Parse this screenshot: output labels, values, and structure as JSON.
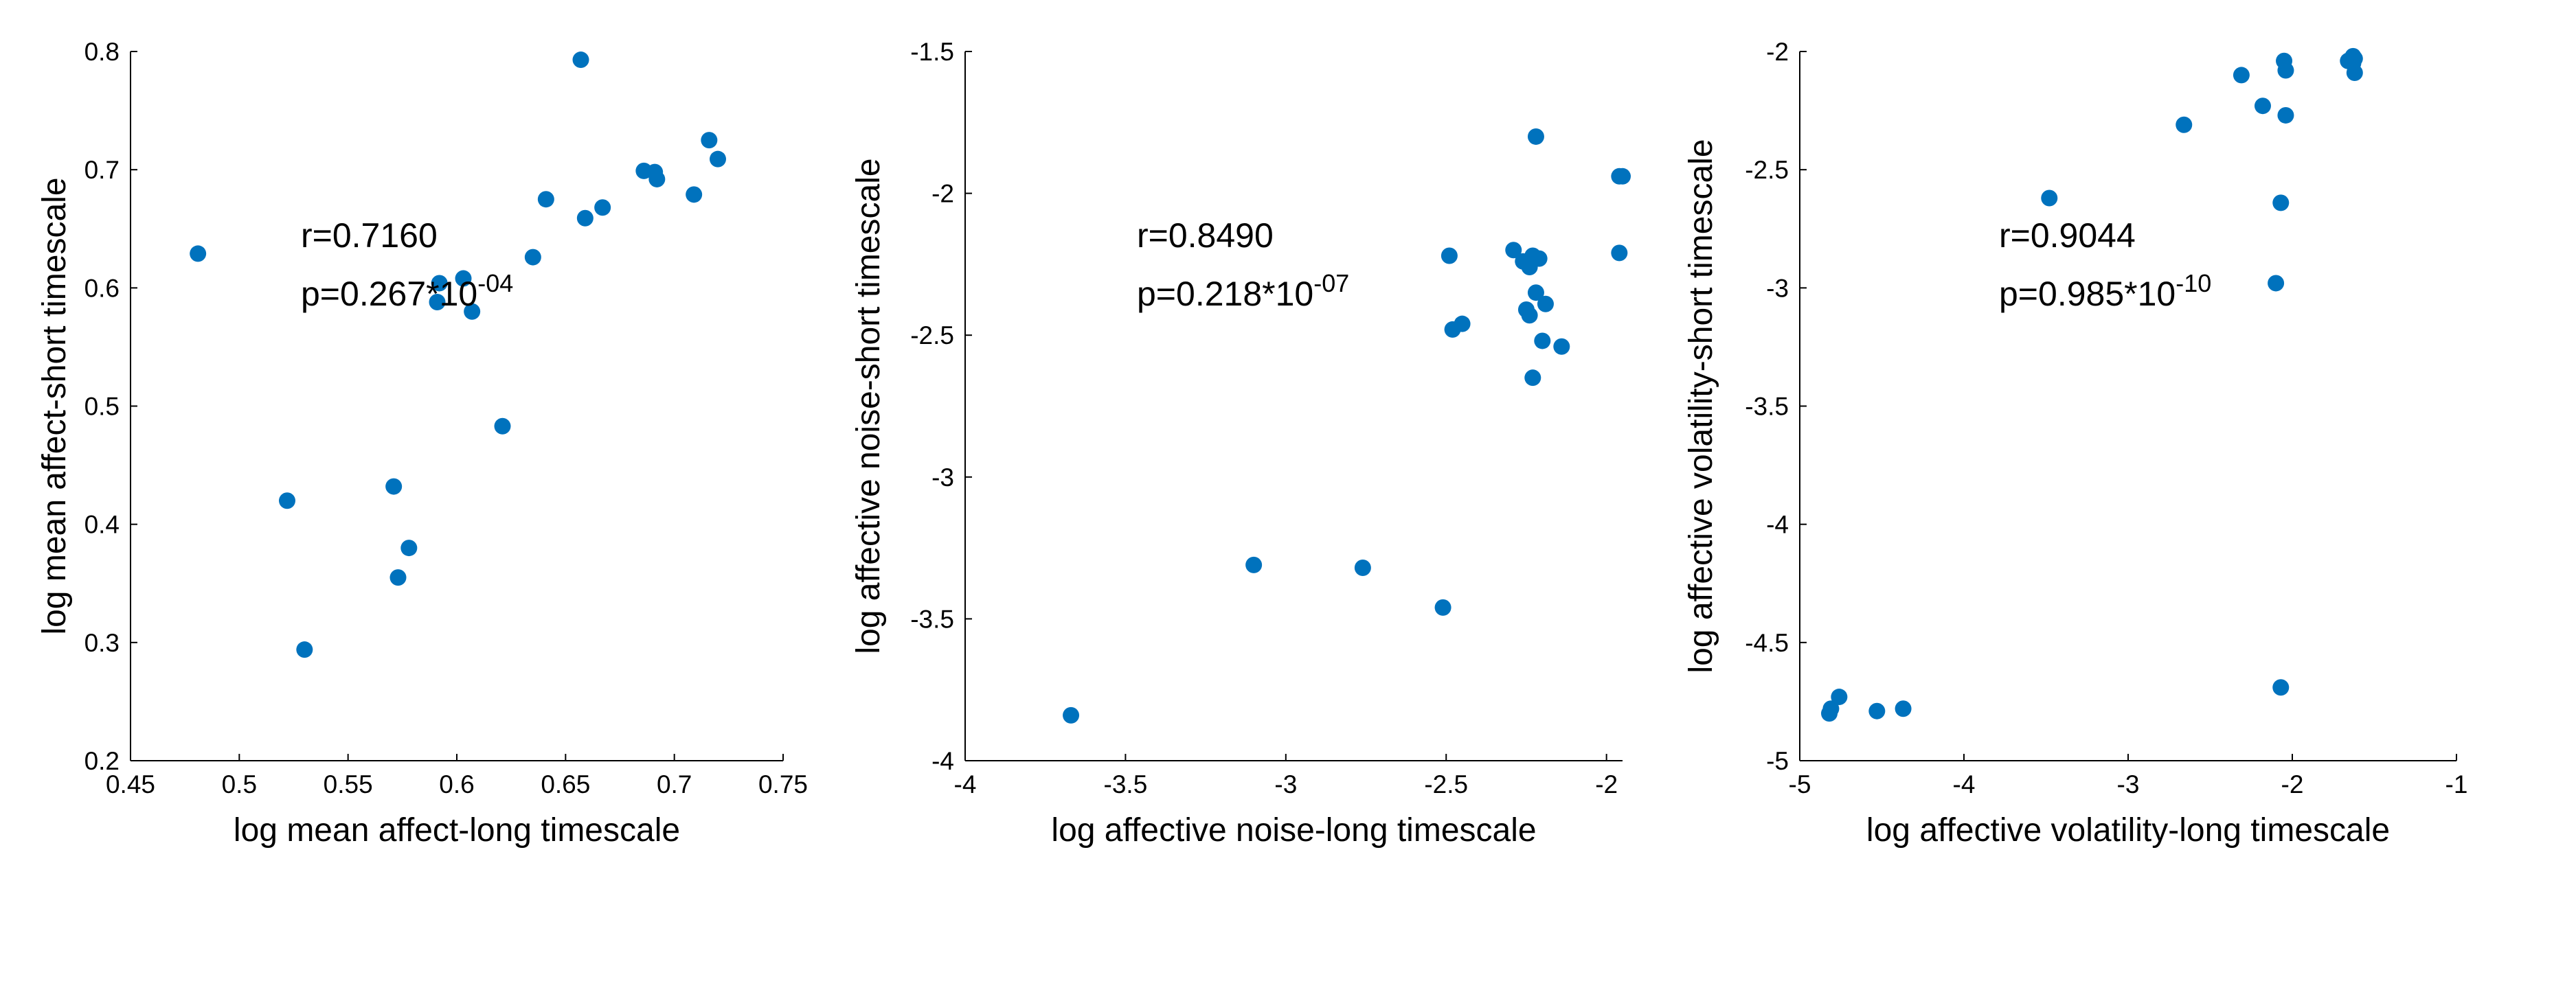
{
  "colors": {
    "marker": "#0072BD",
    "axes": "#000000",
    "background": "#ffffff"
  },
  "chart_data": [
    {
      "type": "scatter",
      "title": "",
      "xlabel": "log mean affect-long timescale",
      "ylabel": "log mean affect-short timescale",
      "xlim": [
        0.45,
        0.75
      ],
      "ylim": [
        0.2,
        0.8
      ],
      "xticks": [
        0.45,
        0.5,
        0.55,
        0.6,
        0.65,
        0.7,
        0.75
      ],
      "yticks": [
        0.2,
        0.3,
        0.4,
        0.5,
        0.6,
        0.7,
        0.8
      ],
      "xtick_labels": [
        "0.45",
        "0.5",
        "0.55",
        "0.6",
        "0.65",
        "0.7",
        "0.75"
      ],
      "ytick_labels": [
        "0.2",
        "0.3",
        "0.4",
        "0.5",
        "0.6",
        "0.7",
        "0.8"
      ],
      "grid": false,
      "annotation": {
        "r": "r=0.7160",
        "p_base": "p=0.267*10",
        "p_exp": "-04"
      },
      "points": [
        [
          0.481,
          0.629
        ],
        [
          0.522,
          0.42
        ],
        [
          0.53,
          0.294
        ],
        [
          0.571,
          0.432
        ],
        [
          0.573,
          0.355
        ],
        [
          0.578,
          0.38
        ],
        [
          0.591,
          0.588
        ],
        [
          0.592,
          0.604
        ],
        [
          0.603,
          0.608
        ],
        [
          0.607,
          0.58
        ],
        [
          0.621,
          0.483
        ],
        [
          0.635,
          0.626
        ],
        [
          0.641,
          0.675
        ],
        [
          0.657,
          0.793
        ],
        [
          0.659,
          0.659
        ],
        [
          0.667,
          0.668
        ],
        [
          0.686,
          0.699
        ],
        [
          0.691,
          0.698
        ],
        [
          0.692,
          0.692
        ],
        [
          0.709,
          0.679
        ],
        [
          0.716,
          0.725
        ],
        [
          0.72,
          0.709
        ]
      ]
    },
    {
      "type": "scatter",
      "title": "",
      "xlabel": "log affective noise-long timescale",
      "ylabel": "log affective noise-short timescale",
      "xlim": [
        -4,
        -1.95
      ],
      "ylim": [
        -4,
        -1.5
      ],
      "xticks": [
        -4,
        -3.5,
        -3,
        -2.5,
        -2
      ],
      "yticks": [
        -4,
        -3.5,
        -3,
        -2.5,
        -2,
        -1.5
      ],
      "xtick_labels": [
        "-4",
        "-3.5",
        "-3",
        "-2.5",
        "-2"
      ],
      "ytick_labels": [
        "-4",
        "-3.5",
        "-3",
        "-2.5",
        "-2",
        "-1.5"
      ],
      "grid": false,
      "annotation": {
        "r": "r=0.8490",
        "p_base": "p=0.218*10",
        "p_exp": "-07"
      },
      "points": [
        [
          -3.67,
          -3.84
        ],
        [
          -3.1,
          -3.31
        ],
        [
          -2.76,
          -3.32
        ],
        [
          -2.51,
          -3.46
        ],
        [
          -2.49,
          -2.22
        ],
        [
          -2.48,
          -2.48
        ],
        [
          -2.45,
          -2.46
        ],
        [
          -2.29,
          -2.2
        ],
        [
          -2.26,
          -2.24
        ],
        [
          -2.25,
          -2.41
        ],
        [
          -2.24,
          -2.43
        ],
        [
          -2.24,
          -2.26
        ],
        [
          -2.23,
          -2.22
        ],
        [
          -2.23,
          -2.65
        ],
        [
          -2.22,
          -1.8
        ],
        [
          -2.22,
          -2.35
        ],
        [
          -2.21,
          -2.23
        ],
        [
          -2.2,
          -2.52
        ],
        [
          -2.19,
          -2.39
        ],
        [
          -2.14,
          -2.54
        ],
        [
          -1.96,
          -2.21
        ],
        [
          -1.96,
          -1.94
        ],
        [
          -1.95,
          -1.94
        ]
      ]
    },
    {
      "type": "scatter",
      "title": "",
      "xlabel": "log affective volatility-long timescale",
      "ylabel": "log affective volatility-short timescale",
      "xlim": [
        -5,
        -1
      ],
      "ylim": [
        -5,
        -2
      ],
      "xticks": [
        -5,
        -4,
        -3,
        -2,
        -1
      ],
      "yticks": [
        -5,
        -4.5,
        -4,
        -3.5,
        -3,
        -2.5,
        -2
      ],
      "xtick_labels": [
        "-5",
        "-4",
        "-3",
        "-2",
        "-1"
      ],
      "ytick_labels": [
        "-5",
        "-4.5",
        "-4",
        "-3.5",
        "-3",
        "-2.5",
        "-2"
      ],
      "grid": false,
      "annotation": {
        "r": "r=0.9044",
        "p_base": "p=0.985*10",
        "p_exp": "-10"
      },
      "points": [
        [
          -4.82,
          -4.8
        ],
        [
          -4.81,
          -4.78
        ],
        [
          -4.76,
          -4.73
        ],
        [
          -4.53,
          -4.79
        ],
        [
          -4.37,
          -4.78
        ],
        [
          -3.48,
          -2.62
        ],
        [
          -2.66,
          -2.31
        ],
        [
          -2.31,
          -2.1
        ],
        [
          -2.18,
          -2.23
        ],
        [
          -2.1,
          -2.98
        ],
        [
          -2.07,
          -2.64
        ],
        [
          -2.07,
          -4.69
        ],
        [
          -2.05,
          -2.04
        ],
        [
          -2.04,
          -2.27
        ],
        [
          -2.04,
          -2.08
        ],
        [
          -1.66,
          -2.04
        ],
        [
          -1.63,
          -2.02
        ],
        [
          -1.63,
          -2.05
        ],
        [
          -1.62,
          -2.09
        ],
        [
          -1.62,
          -2.03
        ]
      ]
    }
  ]
}
